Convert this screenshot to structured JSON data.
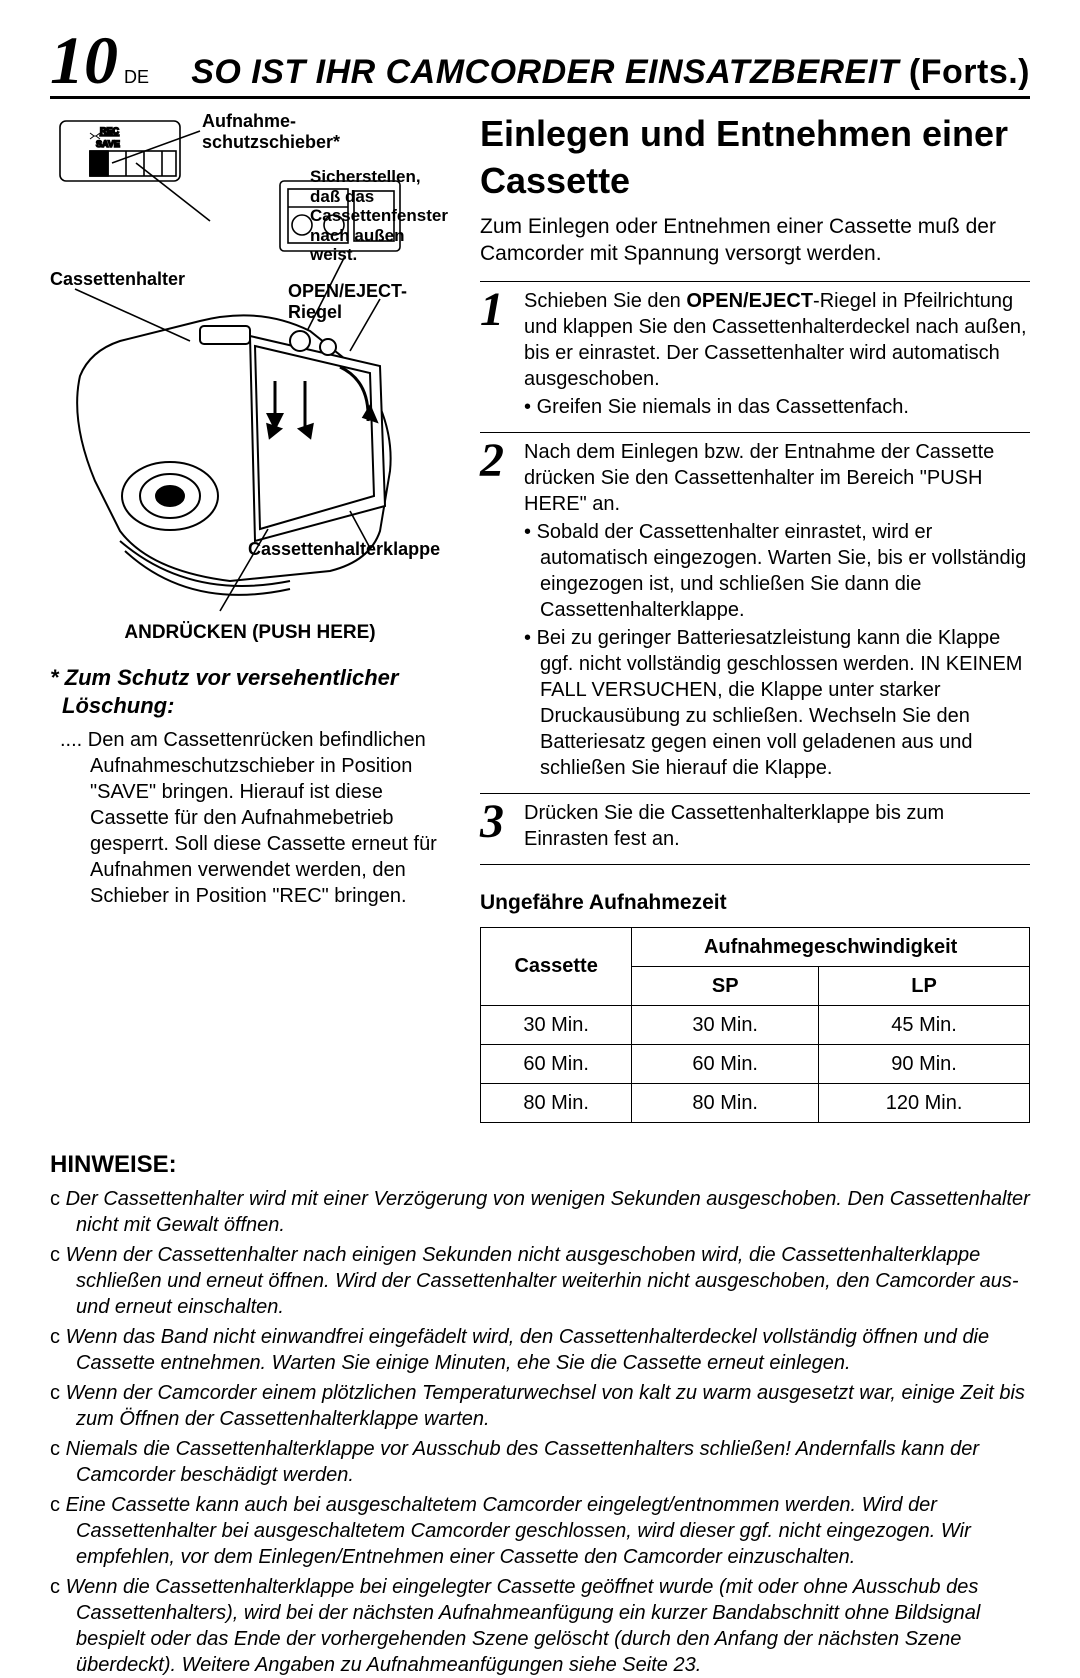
{
  "page": {
    "number": "10",
    "lang_code": "DE",
    "header_title_main": "SO IST IHR CAMCORDER EINSATZBEREIT",
    "header_title_cont": "(Forts.)"
  },
  "diagram": {
    "callouts": {
      "record_protect": "Aufnahme-\nschutzschieber*",
      "ensure_window": "Sicherstellen,\ndaß das\nCassettenfenster\nnach außen\nweist.",
      "holder": "Cassettenhalter",
      "open_eject": "OPEN/EJECT-Riegel",
      "door": "Cassettenhalterklappe",
      "push_here": "ANDRÜCKEN (PUSH HERE)",
      "rec_label": "REC",
      "save_label": "SAVE"
    }
  },
  "protect": {
    "heading": "* Zum Schutz vor versehentlicher Löschung:",
    "body": ".... Den am Cassettenrücken befindlichen Aufnahmeschutzschieber in Position \"SAVE\" bringen. Hierauf ist diese Cassette für den Aufnahmebetrieb gesperrt. Soll diese Cassette erneut für Aufnahmen verwendet werden, den Schieber in Position \"REC\" bringen."
  },
  "section": {
    "title": "Einlegen und Entnehmen einer Cassette",
    "intro": "Zum Einlegen oder Entnehmen einer Cassette muß der Camcorder mit Spannung versorgt werden."
  },
  "steps": [
    {
      "num": "1",
      "text": "Schieben Sie den OPEN/EJECT-Riegel in Pfeilrichtung und klappen Sie den Cassettenhalterdeckel nach außen, bis er einrastet. Der Cassettenhalter wird automatisch ausgeschoben.",
      "bullets": [
        "Greifen Sie niemals in das Cassettenfach."
      ]
    },
    {
      "num": "2",
      "text": "Nach dem Einlegen bzw. der Entnahme der Cassette drücken Sie den Cassettenhalter im Bereich \"PUSH HERE\" an.",
      "bullets": [
        "Sobald der Cassettenhalter einrastet, wird er automatisch eingezogen. Warten Sie, bis er vollständig eingezogen ist, und schließen Sie dann die Cassettenhalterklappe.",
        "Bei zu geringer Batteriesatzleistung kann die Klappe ggf. nicht vollständig geschlossen werden. IN KEINEM FALL VERSUCHEN, die Klappe unter starker Druckausübung zu schließen. Wechseln Sie den Batteriesatz gegen einen voll geladenen aus und schließen Sie hierauf die Klappe."
      ]
    },
    {
      "num": "3",
      "text": "Drücken Sie die Cassettenhalterklappe bis zum Einrasten fest an.",
      "bullets": []
    }
  ],
  "table": {
    "caption": "Ungefähre Aufnahmezeit",
    "head_cassette": "Cassette",
    "head_speed": "Aufnahmegeschwindigkeit",
    "col_sp": "SP",
    "col_lp": "LP",
    "rows": [
      {
        "cassette": "30 Min.",
        "sp": "30 Min.",
        "lp": "45 Min."
      },
      {
        "cassette": "60 Min.",
        "sp": "60 Min.",
        "lp": "90 Min."
      },
      {
        "cassette": "80 Min.",
        "sp": "80 Min.",
        "lp": "120 Min."
      }
    ]
  },
  "notes": {
    "heading": "HINWEISE:",
    "bullet_char": "c",
    "items": [
      "Der Cassettenhalter wird mit einer Verzögerung von wenigen Sekunden ausgeschoben. Den Cassettenhalter nicht mit Gewalt öffnen.",
      "Wenn der Cassettenhalter nach einigen Sekunden nicht ausgeschoben wird, die Cassettenhalterklappe schließen und erneut öffnen. Wird der Cassettenhalter weiterhin nicht ausgeschoben, den Camcorder aus- und erneut einschalten.",
      "Wenn das Band nicht einwandfrei eingefädelt wird, den Cassettenhalterdeckel vollständig öffnen und die Cassette entnehmen. Warten Sie einige Minuten, ehe Sie die Cassette erneut einlegen.",
      "Wenn der Camcorder einem plötzlichen Temperaturwechsel von kalt zu warm ausgesetzt war, einige Zeit bis zum Öffnen der Cassettenhalterklappe warten.",
      "Niemals die Cassettenhalterklappe vor Ausschub des Cassettenhalters schließen! Andernfalls kann der Camcorder beschädigt werden.",
      "Eine Cassette kann auch bei ausgeschaltetem Camcorder eingelegt/entnommen werden. Wird der Cassettenhalter bei ausgeschaltetem Camcorder geschlossen, wird dieser ggf. nicht eingezogen. Wir empfehlen, vor dem Einlegen/Entnehmen einer Cassette den Camcorder einzuschalten.",
      "Wenn die Cassettenhalterklappe bei eingelegter Cassette geöffnet wurde (mit oder ohne Ausschub des Cassettenhalters), wird bei der nächsten Aufnahmeanfügung ein kurzer Bandabschnitt ohne Bildsignal bespielt oder das Ende der vorhergehenden Szene gelöscht (durch den Anfang der nächsten Szene überdeckt). Weitere Angaben zu Aufnahmeanfügungen siehe Seite 23."
    ]
  }
}
